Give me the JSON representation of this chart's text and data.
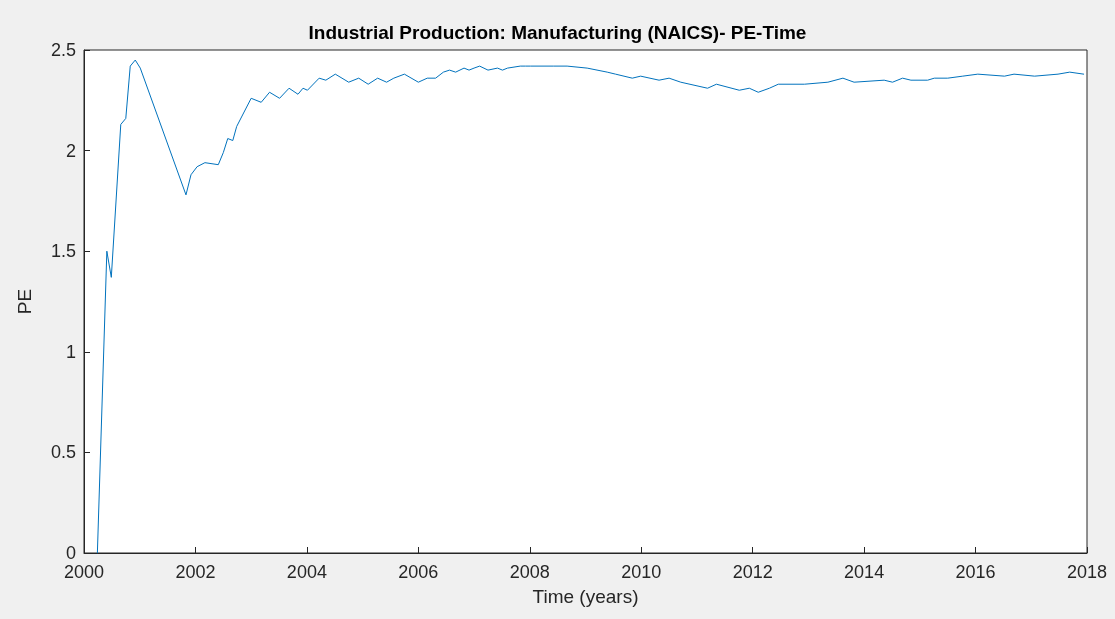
{
  "chart_data": {
    "type": "line",
    "title": "Industrial Production: Manufacturing (NAICS)- PE-Time",
    "xlabel": "Time (years)",
    "ylabel": "PE",
    "x": [
      2000.24,
      2000.41,
      2000.49,
      2000.66,
      2000.75,
      2000.83,
      2000.92,
      2001.01,
      2001.83,
      2001.92,
      2002.03,
      2002.17,
      2002.41,
      2002.5,
      2002.58,
      2002.67,
      2002.74,
      2003.0,
      2003.18,
      2003.33,
      2003.51,
      2003.68,
      2003.84,
      2003.93,
      2004.01,
      2004.22,
      2004.34,
      2004.51,
      2004.75,
      2004.93,
      2005.1,
      2005.27,
      2005.43,
      2005.56,
      2005.75,
      2006.0,
      2006.16,
      2006.31,
      2006.45,
      2006.56,
      2006.67,
      2006.82,
      2006.91,
      2007.0,
      2007.1,
      2007.25,
      2007.42,
      2007.51,
      2007.6,
      2007.83,
      2007.92,
      2008.01,
      2008.43,
      2008.67,
      2009.03,
      2009.39,
      2009.54,
      2009.84,
      2009.99,
      2010.32,
      2010.5,
      2010.71,
      2011.19,
      2011.35,
      2011.76,
      2011.94,
      2012.1,
      2012.3,
      2012.46,
      2012.93,
      2013.35,
      2013.62,
      2013.82,
      2014.36,
      2014.51,
      2014.69,
      2014.84,
      2015.14,
      2015.26,
      2015.5,
      2015.77,
      2016.04,
      2016.52,
      2016.69,
      2017.06,
      2017.48,
      2017.69,
      2017.94
    ],
    "series": [
      {
        "color": "#0072bd",
        "values": [
          0,
          1.5,
          1.37,
          2.13,
          2.16,
          2.42,
          2.45,
          2.41,
          1.78,
          1.88,
          1.92,
          1.94,
          1.93,
          1.99,
          2.06,
          2.05,
          2.12,
          2.26,
          2.24,
          2.29,
          2.26,
          2.31,
          2.28,
          2.31,
          2.3,
          2.36,
          2.35,
          2.38,
          2.34,
          2.36,
          2.33,
          2.36,
          2.34,
          2.36,
          2.38,
          2.34,
          2.36,
          2.36,
          2.39,
          2.4,
          2.39,
          2.41,
          2.4,
          2.41,
          2.42,
          2.4,
          2.41,
          2.4,
          2.41,
          2.42,
          2.42,
          2.42,
          2.42,
          2.42,
          2.41,
          2.39,
          2.38,
          2.36,
          2.37,
          2.35,
          2.36,
          2.34,
          2.31,
          2.33,
          2.3,
          2.31,
          2.29,
          2.31,
          2.33,
          2.33,
          2.34,
          2.36,
          2.34,
          2.35,
          2.34,
          2.36,
          2.35,
          2.35,
          2.36,
          2.36,
          2.37,
          2.38,
          2.37,
          2.38,
          2.37,
          2.38,
          2.39,
          2.38
        ]
      }
    ],
    "xlim": [
      2000,
      2018
    ],
    "xticks": [
      2000,
      2002,
      2004,
      2006,
      2008,
      2010,
      2012,
      2014,
      2016,
      2018
    ],
    "ylim": [
      0,
      2.5
    ],
    "yticks": [
      0,
      0.5,
      1,
      1.5,
      2,
      2.5
    ],
    "grid": false,
    "marker": "none",
    "line_style": "solid"
  }
}
